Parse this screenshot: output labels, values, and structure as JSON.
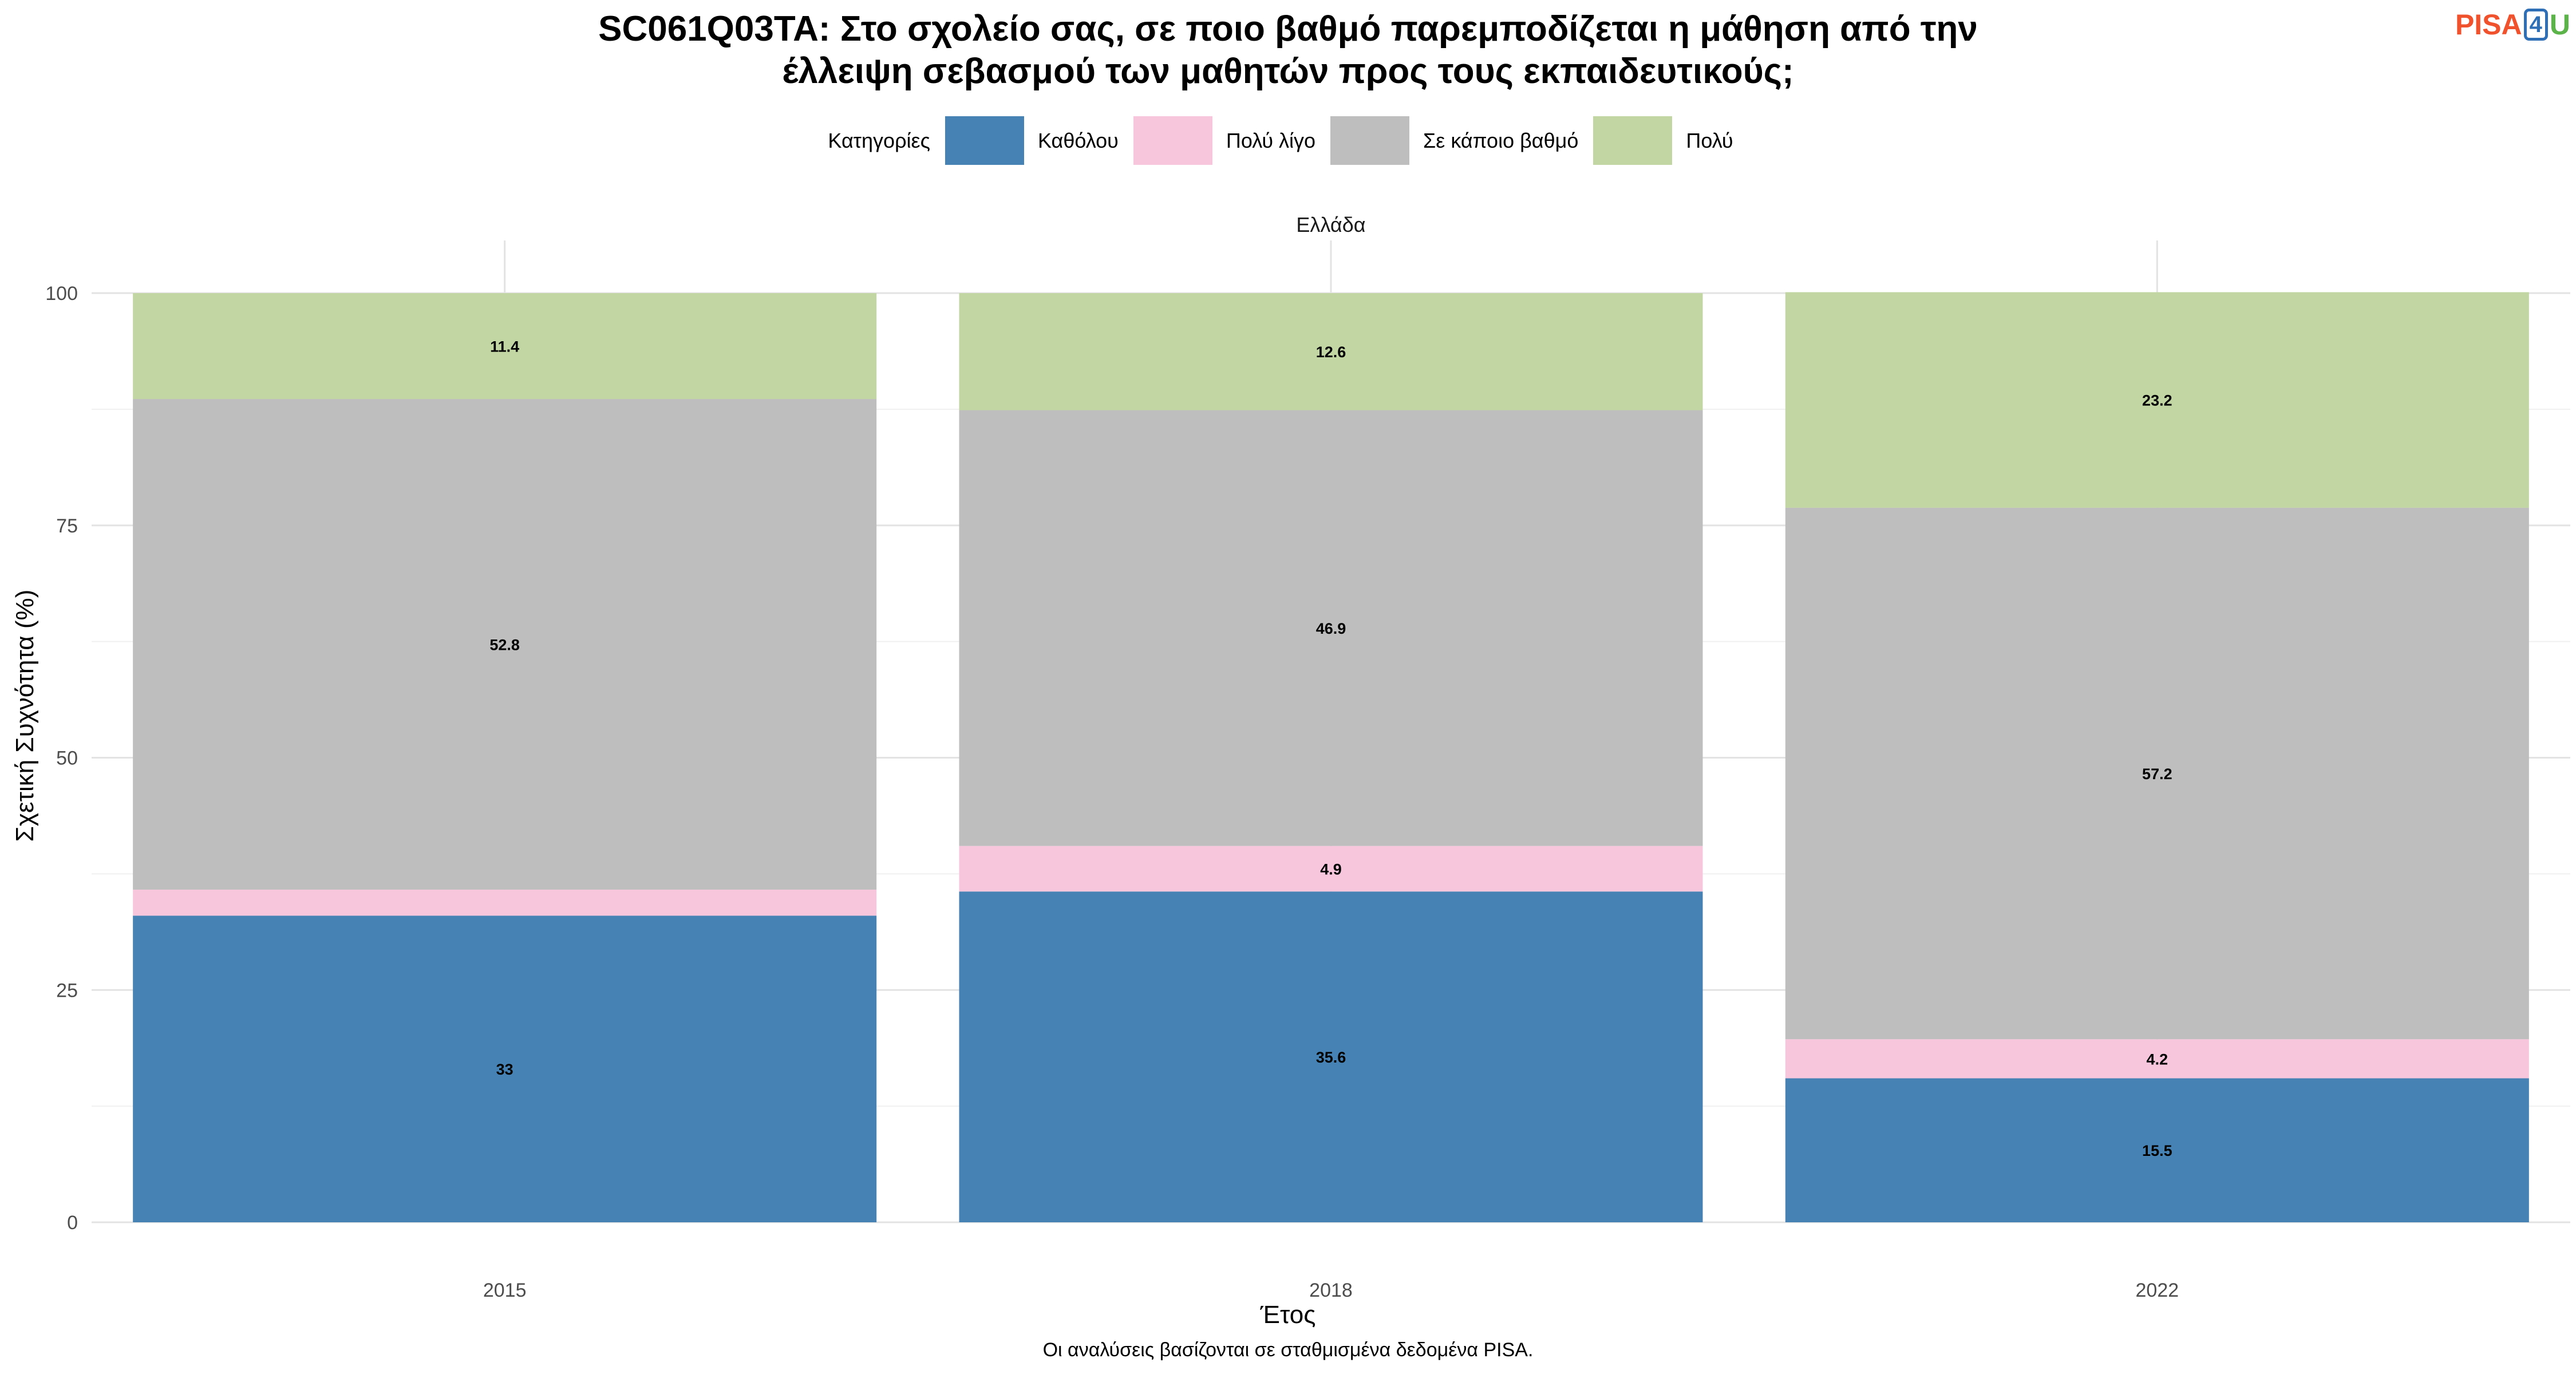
{
  "title": {
    "line1": "SC061Q03TA: Στο σχολείο σας, σε ποιο βαθμό παρεμποδίζεται η μάθηση από την",
    "line2": "έλλειψη σεβασμού των μαθητών προς τους εκπαιδευτικούς;"
  },
  "logo": {
    "part1": "PISA",
    "part2": "4",
    "part3": "U"
  },
  "legend": {
    "title": "Κατηγορίες"
  },
  "facet_label": "Ελλάδα",
  "caption": "Οι αναλύσεις βασίζονται σε σταθμισμένα δεδομένα PISA.",
  "chart_data": {
    "type": "bar",
    "stacked": true,
    "categories": [
      "2015",
      "2018",
      "2022"
    ],
    "xlabel": "Έτος",
    "ylabel": "Σχετική Συχνότητα (%)",
    "ylim": [
      0,
      100
    ],
    "yticks": [
      0,
      25,
      50,
      75,
      100
    ],
    "grid": true,
    "legend_position": "top",
    "series": [
      {
        "name": "Καθόλου",
        "color": "#4682b4",
        "values": [
          33,
          35.6,
          15.5
        ],
        "labels": [
          "33",
          "35.6",
          "15.5"
        ]
      },
      {
        "name": "Πολύ λίγο",
        "color": "#f8c6dc",
        "values": [
          2.8,
          4.9,
          4.2
        ],
        "labels": [
          "",
          "4.9",
          "4.2"
        ]
      },
      {
        "name": "Σε κάποιο βαθμό",
        "color": "#bebebe",
        "values": [
          52.8,
          46.9,
          57.2
        ],
        "labels": [
          "52.8",
          "46.9",
          "57.2"
        ]
      },
      {
        "name": "Πολύ",
        "color": "#c2d6a4",
        "values": [
          11.4,
          12.6,
          23.2
        ],
        "labels": [
          "11.4",
          "12.6",
          "23.2"
        ]
      }
    ]
  }
}
